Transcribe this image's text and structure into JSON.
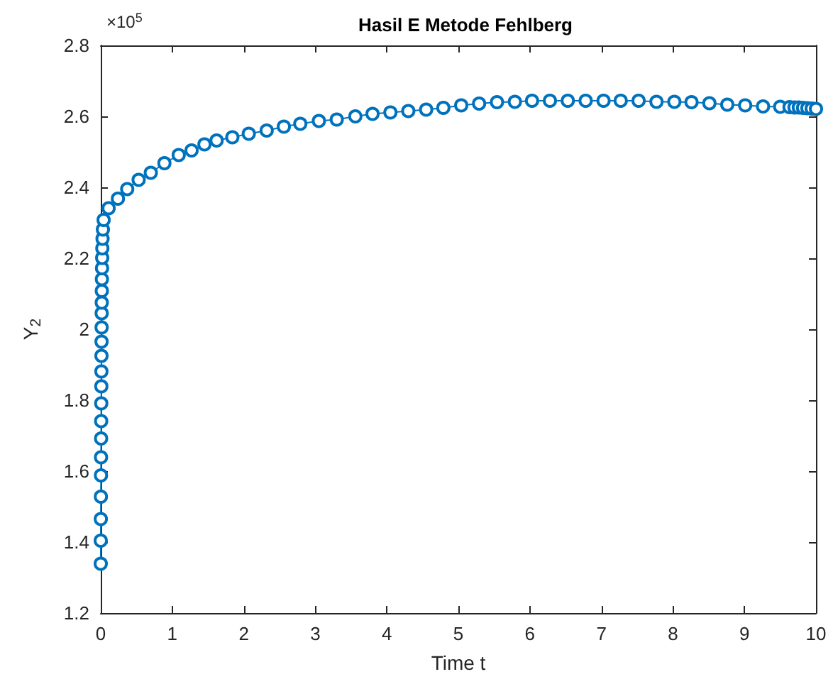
{
  "chart_data": {
    "type": "line",
    "title": "Hasil E Metode Fehlberg",
    "xlabel": "Time t",
    "ylabel": "Y$_{2}$",
    "annotations": [
      "×10$^{5}$"
    ],
    "x": [
      0,
      0,
      0.001,
      0.002,
      0.003,
      0.004,
      0.005,
      0.006,
      0.007,
      0.008,
      0.009,
      0.01,
      0.011,
      0.012,
      0.013,
      0.014,
      0.015,
      0.016,
      0.018,
      0.02,
      0.022,
      0.025,
      0.03,
      0.04,
      0.11,
      0.24,
      0.37,
      0.53,
      0.7,
      0.89,
      1.09,
      1.27,
      1.45,
      1.62,
      1.84,
      2.07,
      2.32,
      2.56,
      2.79,
      3.05,
      3.3,
      3.56,
      3.8,
      4.05,
      4.3,
      4.55,
      4.79,
      5.04,
      5.29,
      5.54,
      5.79,
      6.03,
      6.28,
      6.53,
      6.78,
      7.03,
      7.27,
      7.52,
      7.77,
      8.02,
      8.26,
      8.51,
      8.76,
      9.01,
      9.26,
      9.5,
      9.63,
      9.7,
      9.76,
      9.82,
      9.88,
      9.94,
      10
    ],
    "series": [
      {
        "color": "#0072bd",
        "values": [
          1.339,
          1.404,
          1.465,
          1.528,
          1.588,
          1.639,
          1.692,
          1.741,
          1.791,
          1.839,
          1.881,
          1.925,
          1.965,
          2.005,
          2.045,
          2.075,
          2.108,
          2.141,
          2.172,
          2.201,
          2.228,
          2.255,
          2.281,
          2.308,
          2.341,
          2.368,
          2.395,
          2.421,
          2.441,
          2.468,
          2.491,
          2.504,
          2.521,
          2.532,
          2.541,
          2.551,
          2.56,
          2.571,
          2.579,
          2.587,
          2.591,
          2.6,
          2.607,
          2.611,
          2.615,
          2.619,
          2.624,
          2.631,
          2.636,
          2.64,
          2.641,
          2.644,
          2.644,
          2.644,
          2.644,
          2.644,
          2.644,
          2.644,
          2.641,
          2.641,
          2.64,
          2.637,
          2.633,
          2.631,
          2.628,
          2.627,
          2.626,
          2.625,
          2.625,
          2.624,
          2.623,
          2.622,
          2.621
        ]
      }
    ],
    "xlim": [
      0,
      10
    ],
    "xticks": [
      0,
      1,
      2,
      3,
      4,
      5,
      6,
      7,
      8,
      9,
      10
    ],
    "ylim": [
      1.2,
      2.8
    ],
    "yticks": [
      1.2,
      1.4,
      1.6,
      1.8,
      2,
      2.2,
      2.4,
      2.6,
      2.8
    ],
    "grid": false,
    "marker": "circle",
    "line_style": "solid"
  }
}
